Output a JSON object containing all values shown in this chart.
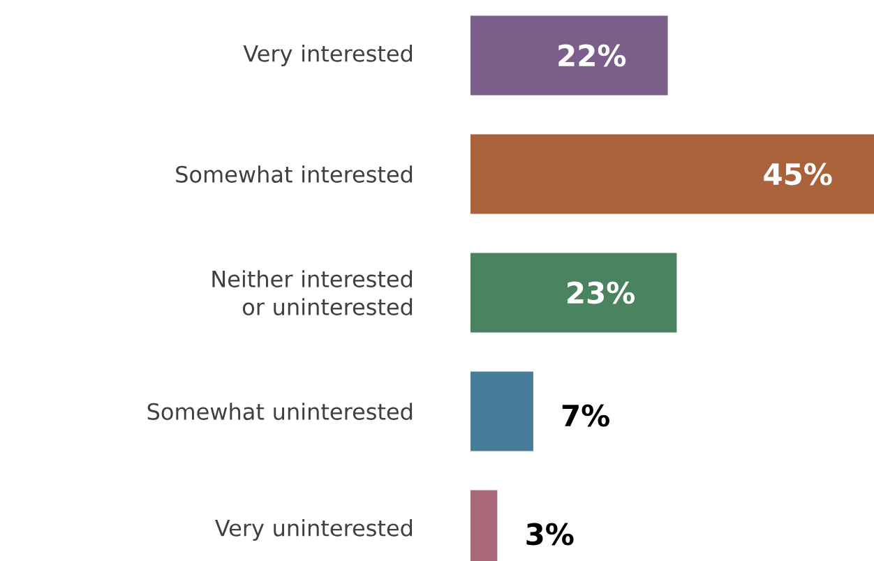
{
  "chart_data": {
    "type": "bar",
    "orientation": "horizontal",
    "categories": [
      "Very interested",
      "Somewhat interested",
      "Neither interested or uninterested",
      "Somewhat uninterested",
      "Very uninterested"
    ],
    "values": [
      22,
      45,
      23,
      7,
      3
    ],
    "value_labels": [
      "22%",
      "45%",
      "23%",
      "7%",
      "3%"
    ],
    "colors": [
      "#7b5e8a",
      "#a9623a",
      "#4a8360",
      "#467c98",
      "#a9677a"
    ]
  }
}
